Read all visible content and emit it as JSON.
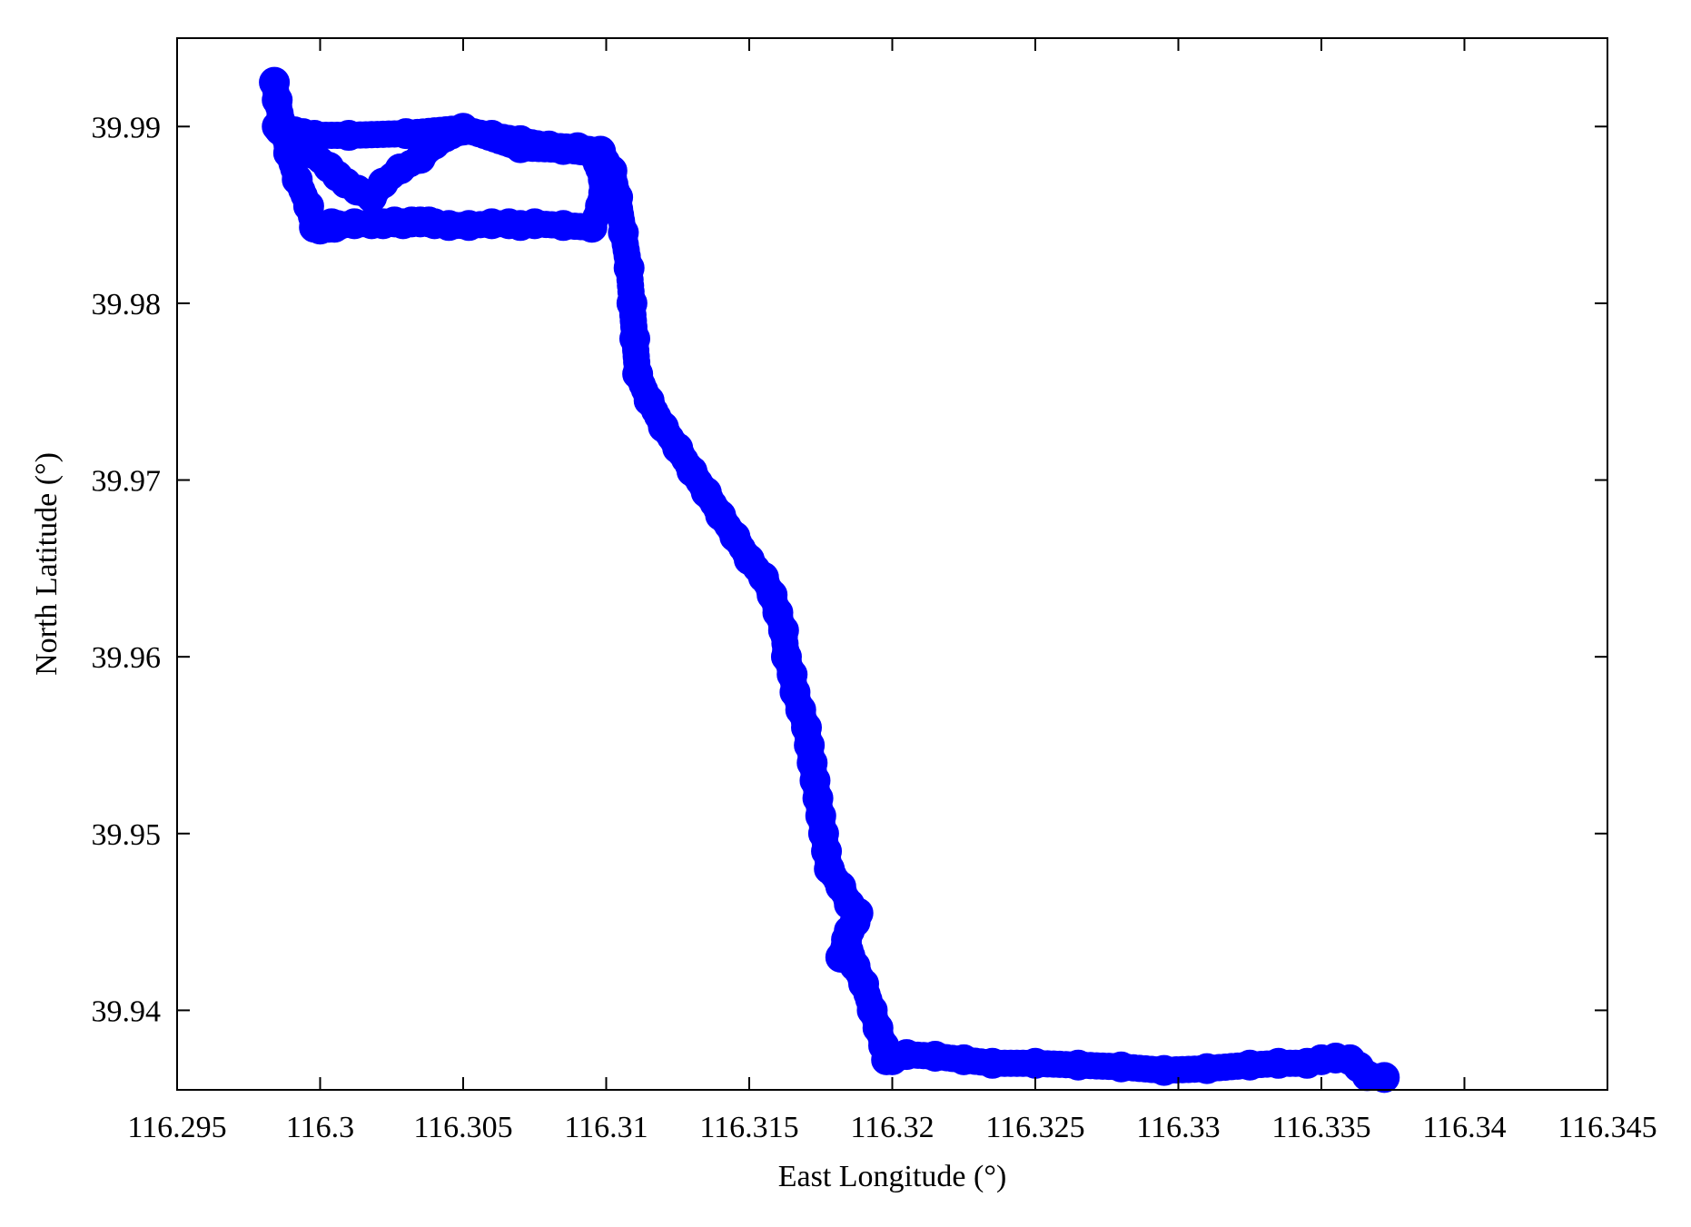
{
  "chart_data": {
    "type": "scatter",
    "title": "",
    "xlabel": "East Longitude (°)",
    "ylabel": "North Latitude (°)",
    "xlim": [
      116.295,
      116.345
    ],
    "ylim": [
      39.9355,
      39.995
    ],
    "xticks": [
      116.295,
      116.3,
      116.305,
      116.31,
      116.315,
      116.32,
      116.325,
      116.33,
      116.335,
      116.34,
      116.345
    ],
    "xtick_labels": [
      "116.295",
      "116.3",
      "116.305",
      "116.31",
      "116.315",
      "116.32",
      "116.325",
      "116.33",
      "116.335",
      "116.34",
      "116.345"
    ],
    "yticks": [
      39.94,
      39.95,
      39.96,
      39.97,
      39.98,
      39.99
    ],
    "ytick_labels": [
      "39.94",
      "39.95",
      "39.96",
      "39.97",
      "39.98",
      "39.99"
    ],
    "grid": false,
    "marker": "open-circle",
    "series": [
      {
        "color": "#0000ff",
        "x": [
          116.2984,
          116.2985,
          116.2987,
          116.2989,
          116.2992,
          116.2996,
          116.2998,
          116.3,
          116.3003,
          116.3005,
          116.3004,
          116.3006,
          116.3012,
          116.3018,
          116.3022,
          116.3026,
          116.3029,
          116.3032,
          116.3035,
          116.3038,
          116.304,
          116.3045,
          116.3052,
          116.306,
          116.3066,
          116.307,
          116.3075,
          116.3085,
          116.3095,
          116.3098,
          116.3099,
          116.3095,
          116.3085,
          116.307,
          116.305,
          116.303,
          116.301,
          116.2998,
          116.2994,
          116.2991,
          116.2988,
          116.2986,
          116.2985,
          116.2997,
          116.3003,
          116.3006,
          116.3009,
          116.3013,
          116.3018,
          116.3022,
          116.3028,
          116.3035,
          116.304,
          116.305,
          116.306,
          116.307,
          116.308,
          116.309,
          116.3098,
          116.3102,
          116.3104,
          116.3106,
          116.3108,
          116.3109,
          116.311,
          116.3111,
          116.3115,
          116.312,
          116.3125,
          116.313,
          116.3135,
          116.314,
          116.3145,
          116.315,
          116.3155,
          116.3158,
          116.316,
          116.3162,
          116.3163,
          116.3165,
          116.3166,
          116.3168,
          116.317,
          116.3171,
          116.3172,
          116.3173,
          116.3174,
          116.3175,
          116.3176,
          116.3177,
          116.3178,
          116.3182,
          116.3185,
          116.3188,
          116.3187,
          116.3185,
          116.3182,
          116.3184,
          116.3187,
          116.319,
          116.3193,
          116.3195,
          116.3197,
          116.3198,
          116.32,
          116.3205,
          116.3215,
          116.3225,
          116.3235,
          116.325,
          116.3265,
          116.328,
          116.3295,
          116.331,
          116.3325,
          116.3335,
          116.3345,
          116.335,
          116.3355,
          116.336,
          116.3363,
          116.3366,
          116.3372
        ],
        "y": [
          39.9925,
          39.9915,
          39.99,
          39.9885,
          39.987,
          39.9855,
          39.9843,
          39.9842,
          39.9843,
          39.9843,
          39.9845,
          39.9844,
          39.9845,
          39.9845,
          39.9845,
          39.9846,
          39.9845,
          39.9846,
          39.9846,
          39.9846,
          39.9845,
          39.9844,
          39.9844,
          39.9845,
          39.9845,
          39.9844,
          39.9845,
          39.9844,
          39.9843,
          39.9855,
          39.987,
          39.9885,
          39.9887,
          39.9888,
          39.9899,
          39.9896,
          39.9895,
          39.9895,
          39.9896,
          39.9897,
          39.9898,
          39.9898,
          39.99,
          39.9885,
          39.9877,
          39.9872,
          39.9868,
          39.9864,
          39.986,
          39.9868,
          39.9876,
          39.9882,
          39.989,
          39.9898,
          39.9895,
          39.9892,
          39.9889,
          39.9888,
          39.9886,
          39.9875,
          39.986,
          39.984,
          39.982,
          39.98,
          39.978,
          39.976,
          39.9745,
          39.973,
          39.9718,
          39.9705,
          39.9693,
          39.968,
          39.9668,
          39.9655,
          39.9645,
          39.9635,
          39.9625,
          39.9615,
          39.96,
          39.959,
          39.958,
          39.957,
          39.956,
          39.955,
          39.954,
          39.953,
          39.952,
          39.951,
          39.95,
          39.949,
          39.948,
          39.947,
          39.946,
          39.9455,
          39.945,
          39.9445,
          39.943,
          39.944,
          39.9425,
          39.9415,
          39.94,
          39.939,
          39.938,
          39.9372,
          39.9372,
          39.9375,
          39.9374,
          39.9372,
          39.937,
          39.937,
          39.9369,
          39.9368,
          39.9366,
          39.9367,
          39.9369,
          39.937,
          39.937,
          39.9372,
          39.9373,
          39.9372,
          39.9368,
          39.9363,
          39.9362
        ]
      }
    ]
  }
}
